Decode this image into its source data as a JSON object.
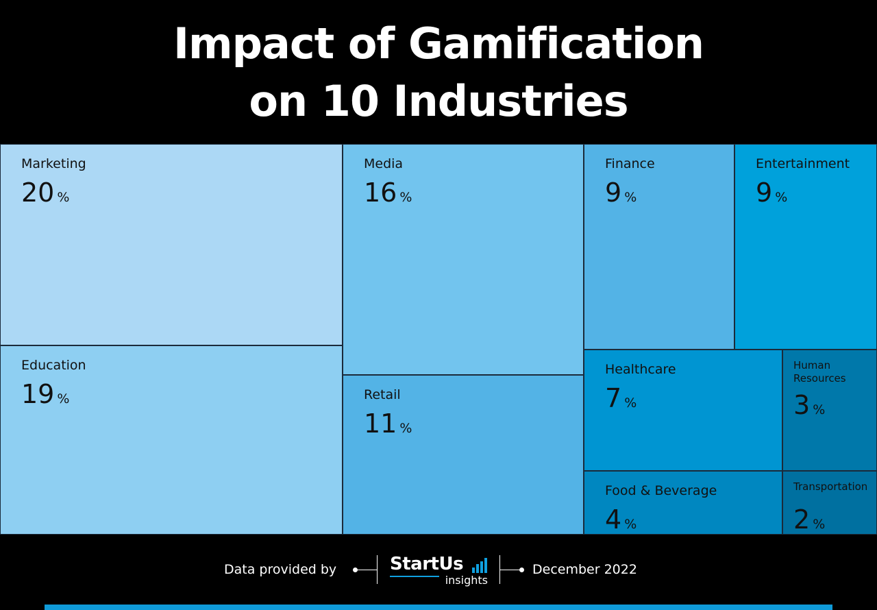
{
  "title_lines": [
    "Impact of Gamification",
    "on 10 Industries"
  ],
  "chart_data": {
    "type": "treemap",
    "title": "Impact of Gamification on 10 Industries",
    "unit": "%",
    "items": [
      {
        "name": "Marketing",
        "value": 20,
        "color": "#acd8f5"
      },
      {
        "name": "Education",
        "value": 19,
        "color": "#8ecff2"
      },
      {
        "name": "Media",
        "value": 16,
        "color": "#72c4ee"
      },
      {
        "name": "Retail",
        "value": 11,
        "color": "#53b3e6"
      },
      {
        "name": "Finance",
        "value": 9,
        "color": "#53b3e6"
      },
      {
        "name": "Entertainment",
        "value": 9,
        "color": "#00a1db"
      },
      {
        "name": "Healthcare",
        "value": 7,
        "color": "#0095d2"
      },
      {
        "name": "Human Resources",
        "value": 3,
        "color": "#0078aa"
      },
      {
        "name": "Food & Beverage",
        "value": 4,
        "color": "#0087c0"
      },
      {
        "name": "Transportation",
        "value": 2,
        "color": "#0070a0"
      }
    ]
  },
  "footer": {
    "provided_by": "Data provided by",
    "brand": "StartUs",
    "brand_sub": "insights",
    "date": "December 2022"
  },
  "colors": {
    "accent": "#0fa0e0",
    "background": "#000000"
  }
}
